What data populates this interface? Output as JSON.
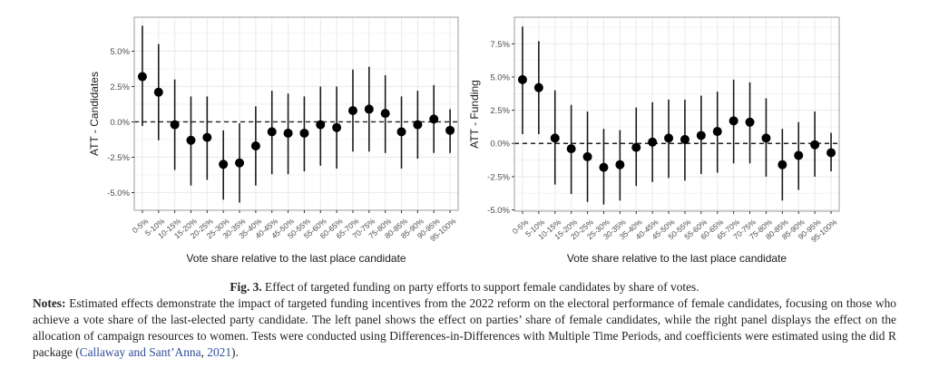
{
  "caption": {
    "fig_label": "Fig. 3.",
    "fig_title": " Effect of targeted funding on party efforts to support female candidates by share of votes.",
    "notes_label": "Notes:",
    "notes_text": " Estimated effects demonstrate the impact of targeted funding incentives from the 2022 reform on the electoral performance of female candidates, focusing on those who achieve a vote share of the last-elected party candidate. The left panel shows the effect on parties’ share of female candidates, while the right panel displays the effect on the allocation of campaign resources to women. Tests were conducted using Differences-in-Differences with Multiple Time Periods, and coefficients were estimated using the did R package (",
    "citation_authors": "Callaway and Sant’Anna",
    "citation_sep": ", ",
    "citation_year": "2021",
    "notes_end": ")."
  },
  "chart_data": [
    {
      "type": "scatter",
      "subtype": "point-range",
      "title": "",
      "xlabel": "Vote share relative to the last place candidate",
      "ylabel": "ATT - Candidates",
      "categories": [
        "0-5%",
        "5-10%",
        "10-15%",
        "15-20%",
        "20-25%",
        "25-30%",
        "30-35%",
        "35-40%",
        "40-45%",
        "45-50%",
        "50-55%",
        "55-60%",
        "60-65%",
        "65-70%",
        "70-75%",
        "75-80%",
        "80-85%",
        "85-90%",
        "90-95%",
        "95-100%"
      ],
      "estimate": [
        3.2,
        2.1,
        -0.2,
        -1.3,
        -1.1,
        -3.0,
        -2.9,
        -1.7,
        -0.7,
        -0.8,
        -0.8,
        -0.2,
        -0.4,
        0.8,
        0.9,
        0.6,
        -0.7,
        -0.2,
        0.2,
        -0.6
      ],
      "ci_low": [
        -0.3,
        -1.3,
        -3.4,
        -4.5,
        -4.1,
        -5.5,
        -5.7,
        -4.5,
        -3.7,
        -3.7,
        -3.5,
        -3.1,
        -3.3,
        -2.1,
        -2.1,
        -2.2,
        -3.3,
        -2.6,
        -2.2,
        -2.2
      ],
      "ci_high": [
        6.8,
        5.5,
        3.0,
        1.8,
        1.8,
        -0.6,
        -0.1,
        1.1,
        2.2,
        2.0,
        1.8,
        2.5,
        2.5,
        3.7,
        3.9,
        3.3,
        1.8,
        2.2,
        2.6,
        0.9
      ],
      "yticks": [
        -5.0,
        -2.5,
        0.0,
        2.5,
        5.0
      ],
      "ytick_labels": [
        "-5.0%",
        "-2.5%",
        "0.0%",
        "2.5%",
        "5.0%"
      ],
      "ylim": [
        -6.25,
        7.4
      ],
      "reference_line": 0,
      "grid": true,
      "legend": "none"
    },
    {
      "type": "scatter",
      "subtype": "point-range",
      "title": "",
      "xlabel": "Vote share relative to the last place candidate",
      "ylabel": "ATT - Funding",
      "categories": [
        "0-5%",
        "5-10%",
        "10-15%",
        "15-20%",
        "20-25%",
        "25-30%",
        "30-35%",
        "35-40%",
        "40-45%",
        "45-50%",
        "50-55%",
        "55-60%",
        "60-65%",
        "65-70%",
        "70-75%",
        "75-80%",
        "80-85%",
        "85-90%",
        "90-95%",
        "95-100%"
      ],
      "estimate": [
        4.8,
        4.2,
        0.4,
        -0.4,
        -1.0,
        -1.8,
        -1.6,
        -0.3,
        0.1,
        0.4,
        0.3,
        0.6,
        0.9,
        1.7,
        1.6,
        0.4,
        -1.6,
        -0.9,
        -0.1,
        -0.7
      ],
      "ci_low": [
        0.7,
        0.7,
        -3.1,
        -3.8,
        -4.4,
        -4.6,
        -4.3,
        -3.2,
        -2.9,
        -2.6,
        -2.8,
        -2.3,
        -2.2,
        -1.5,
        -1.5,
        -2.5,
        -4.3,
        -3.5,
        -2.5,
        -2.1
      ],
      "ci_high": [
        8.8,
        7.7,
        4.0,
        2.9,
        2.4,
        1.1,
        1.0,
        2.7,
        3.1,
        3.3,
        3.3,
        3.6,
        3.9,
        4.8,
        4.6,
        3.4,
        1.1,
        1.6,
        2.4,
        0.8
      ],
      "yticks": [
        -5.0,
        -2.5,
        0.0,
        2.5,
        5.0,
        7.5
      ],
      "ytick_labels": [
        "-5.0%",
        "-2.5%",
        "0.0%",
        "2.5%",
        "5.0%",
        "7.5%"
      ],
      "ylim": [
        -5.1,
        9.5
      ],
      "reference_line": 0,
      "grid": true,
      "legend": "none"
    }
  ]
}
